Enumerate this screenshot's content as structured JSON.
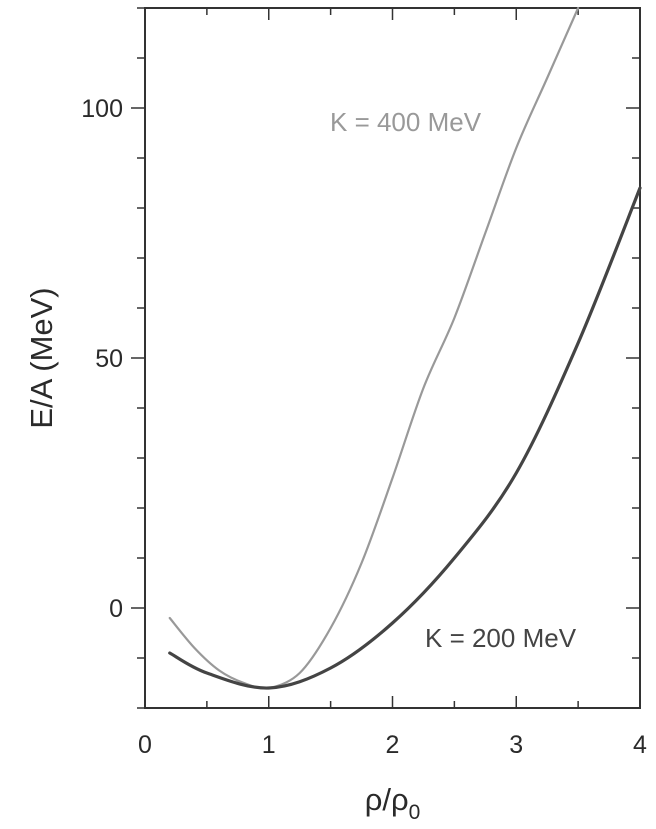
{
  "chart_data": {
    "type": "line",
    "xlabel_base": "ρ/ρ",
    "xlabel_sub": "0",
    "ylabel": "E/A (MeV)",
    "xlim": [
      0,
      4
    ],
    "ylim": [
      -20,
      120
    ],
    "x_ticks": [
      0,
      1,
      2,
      3,
      4
    ],
    "x_tick_labels": [
      "0",
      "1",
      "2",
      "3",
      "4"
    ],
    "y_ticks": [
      0,
      50,
      100
    ],
    "y_tick_labels": [
      "0",
      "50",
      "100"
    ],
    "y_minor_step": 10,
    "grid": false,
    "series": [
      {
        "name": "K = 400 MeV",
        "color": "#999999",
        "x": [
          0.2,
          0.4,
          0.6,
          0.8,
          1.0,
          1.25,
          1.5,
          1.75,
          2.0,
          2.25,
          2.5,
          2.75,
          3.0,
          3.25,
          3.5
        ],
        "y": [
          -2,
          -8,
          -12.5,
          -15,
          -16,
          -13,
          -4,
          9,
          26,
          44,
          58,
          75,
          92,
          106,
          120
        ]
      },
      {
        "name": "K = 200 MeV",
        "color": "#444444",
        "x": [
          0.2,
          0.5,
          1.0,
          1.5,
          2.0,
          2.5,
          3.0,
          3.5,
          4.0
        ],
        "y": [
          -9,
          -13,
          -16,
          -12,
          -3,
          10,
          27,
          53,
          84
        ]
      }
    ]
  }
}
